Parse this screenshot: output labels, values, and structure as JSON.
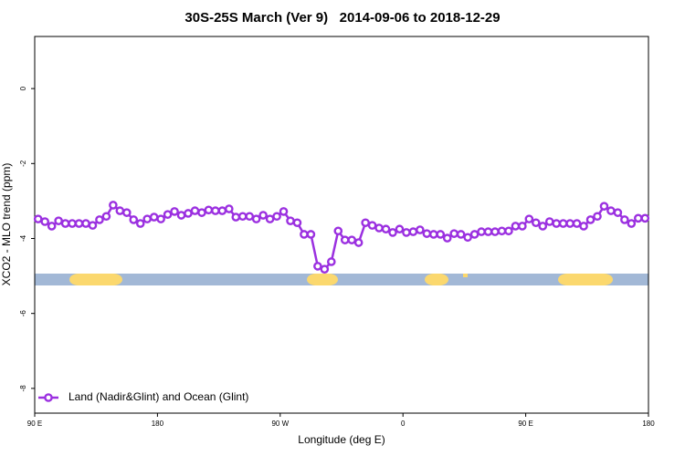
{
  "chart_data": {
    "type": "line",
    "title": "30S-25S March (Ver 9)   2014-09-06 to 2018-12-29",
    "x_label": "Longitude (deg E)",
    "y_label": "XCO2 - MLO trend (ppm)",
    "xlim": [
      90,
      540
    ],
    "ylim": [
      -8.66,
      1.39
    ],
    "xticks": [
      {
        "value": 90,
        "label": "90 E"
      },
      180,
      {
        "value": 270,
        "label": "90 W"
      },
      {
        "value": 360,
        "label": "0"
      },
      {
        "value": 450,
        "label": "90 E"
      },
      {
        "value": 540,
        "label": "180"
      }
    ],
    "yticks": [
      0,
      -2,
      -4,
      -6,
      -8
    ],
    "legend": "bottom-left",
    "x": [
      92.5,
      97.5,
      102.5,
      107.5,
      112.5,
      117.5,
      122.5,
      127.5,
      132.5,
      137.5,
      142.5,
      147.5,
      152.5,
      157.5,
      162.5,
      167.5,
      172.5,
      177.5,
      182.5,
      187.5,
      192.5,
      197.5,
      202.5,
      207.5,
      212.5,
      217.5,
      222.5,
      227.5,
      232.5,
      237.5,
      242.5,
      247.5,
      252.5,
      257.5,
      262.5,
      267.5,
      272.5,
      277.5,
      282.5,
      287.5,
      292.5,
      297.5,
      302.5,
      307.5,
      312.5,
      317.5,
      322.5,
      327.5,
      332.5,
      337.5,
      342.5,
      347.5,
      352.5,
      357.5,
      362.5,
      367.5,
      372.5,
      377.5,
      382.5,
      387.5,
      392.5,
      397.5,
      402.5,
      407.5,
      412.5,
      417.5,
      422.5,
      427.5,
      432.5,
      437.5,
      442.5,
      447.5,
      452.5,
      457.5,
      462.5,
      467.5,
      472.5,
      477.5,
      482.5,
      487.5,
      492.5,
      497.5,
      502.5,
      507.5,
      512.5,
      517.5,
      522.5,
      527.5,
      532.5,
      537.5
    ],
    "series": [
      {
        "name": "Land (Nadir&Glint) and Ocean (Glint)",
        "color": "#9b30e0",
        "values": [
          -3.48,
          -3.55,
          -3.67,
          -3.53,
          -3.6,
          -3.6,
          -3.6,
          -3.6,
          -3.65,
          -3.5,
          -3.41,
          -3.11,
          -3.26,
          -3.31,
          -3.5,
          -3.6,
          -3.48,
          -3.43,
          -3.48,
          -3.36,
          -3.28,
          -3.38,
          -3.33,
          -3.26,
          -3.31,
          -3.24,
          -3.26,
          -3.26,
          -3.21,
          -3.43,
          -3.41,
          -3.41,
          -3.48,
          -3.38,
          -3.48,
          -3.41,
          -3.28,
          -3.53,
          -3.58,
          -3.89,
          -3.89,
          -4.74,
          -4.82,
          -4.62,
          -3.8,
          -4.04,
          -4.04,
          -4.11,
          -3.58,
          -3.65,
          -3.72,
          -3.75,
          -3.84,
          -3.75,
          -3.84,
          -3.82,
          -3.77,
          -3.87,
          -3.89,
          -3.89,
          -3.99,
          -3.87,
          -3.89,
          -3.97,
          -3.89,
          -3.82,
          -3.82,
          -3.82,
          -3.8,
          -3.8,
          -3.67,
          -3.67,
          -3.48,
          -3.58,
          -3.67,
          -3.55,
          -3.6,
          -3.6,
          -3.6,
          -3.6,
          -3.67,
          -3.5,
          -3.41,
          -3.14,
          -3.26,
          -3.31,
          -3.5,
          -3.6,
          -3.46,
          -3.46
        ]
      }
    ]
  }
}
